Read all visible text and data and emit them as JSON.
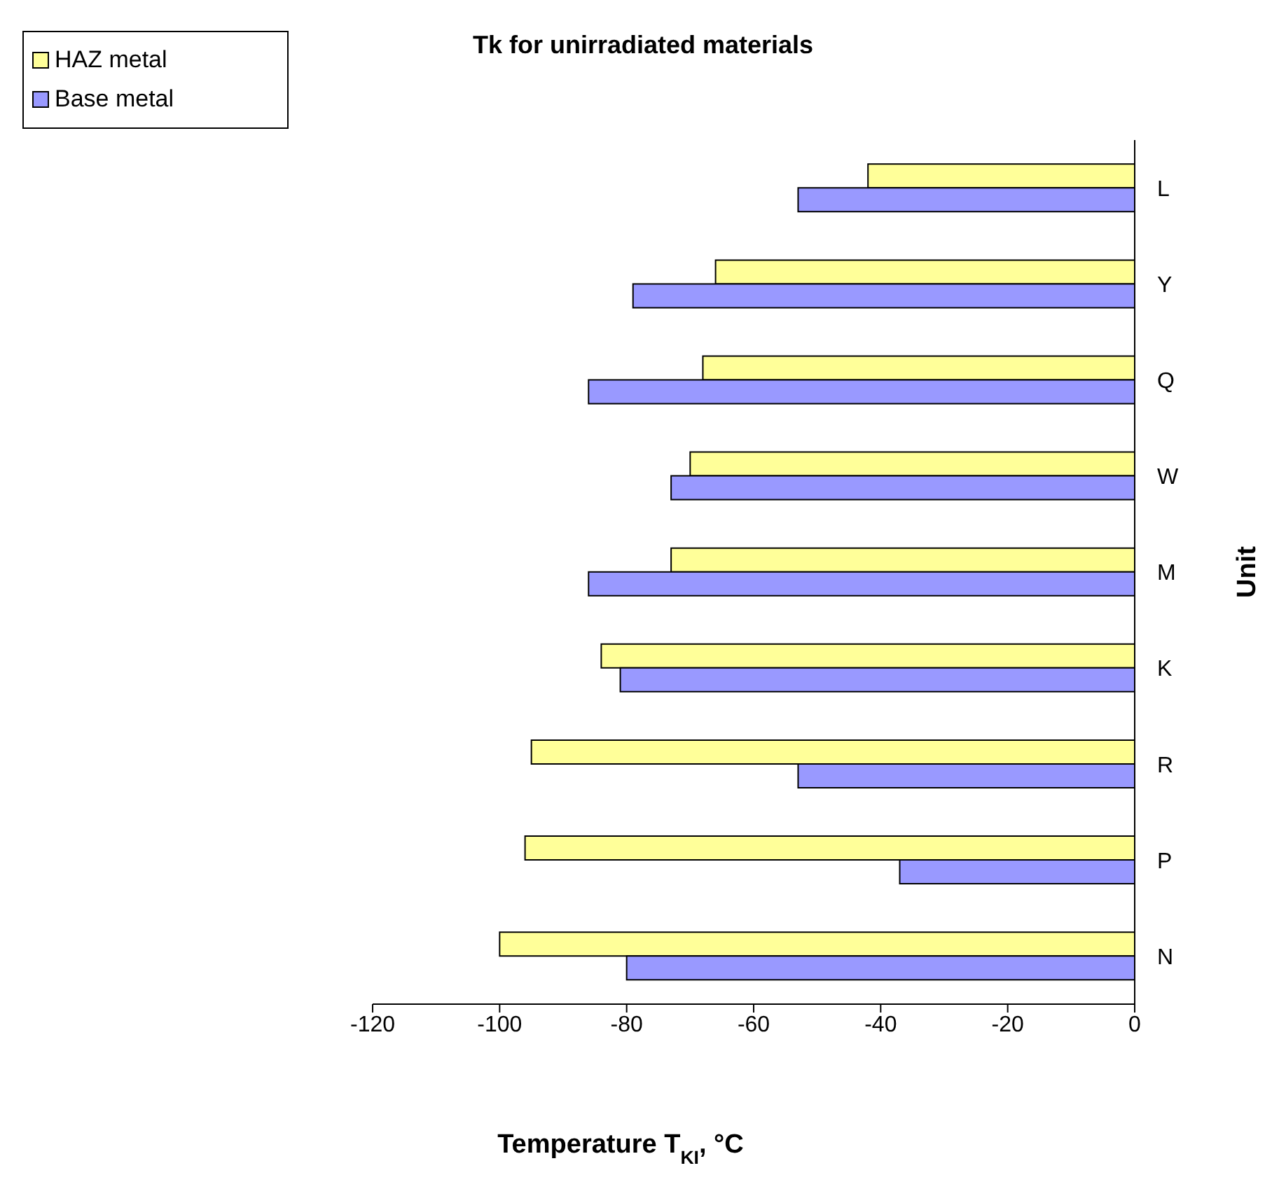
{
  "chart_data": {
    "type": "bar",
    "orientation": "horizontal",
    "title": "Tk for unirradiated materials",
    "xlabel": "Temperature T$_{KI}$, °C",
    "ylabel": "Unit",
    "categories": [
      "L",
      "Y",
      "Q",
      "W",
      "M",
      "K",
      "R",
      "P",
      "N"
    ],
    "series": [
      {
        "name": "HAZ metal",
        "color": "#ffff99",
        "values": [
          -42,
          -66,
          -68,
          -70,
          -73,
          -84,
          -95,
          -96,
          -100
        ]
      },
      {
        "name": "Base metal",
        "color": "#9999ff",
        "values": [
          -53,
          -79,
          -86,
          -73,
          -86,
          -81,
          -53,
          -37,
          -80
        ]
      }
    ],
    "xlim": [
      -120,
      0
    ],
    "xticks": [
      -120,
      -100,
      -80,
      -60,
      -40,
      -20,
      0
    ],
    "grid": false,
    "legend": "top left"
  }
}
